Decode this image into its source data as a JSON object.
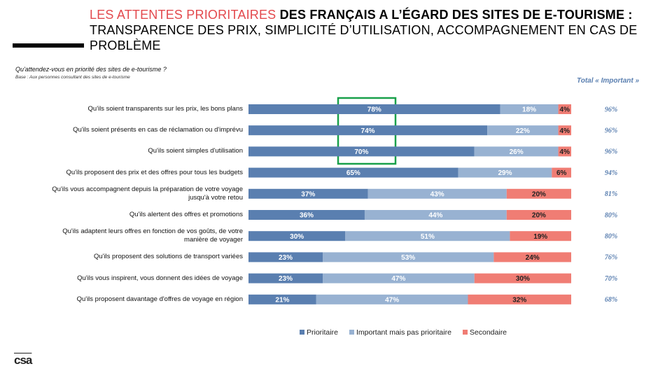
{
  "chart_data": {
    "type": "stacked-bar",
    "title": {
      "highlight": "LES ATTENTES PRIORITAIRES",
      "bold": "DES FRANÇAIS A L’ÉGARD DES SITES DE E-TOURISME :",
      "rest": "TRANSPARENCE DES PRIX, SIMPLICITÉ D’UTILISATION, ACCOMPAGNEMENT EN CAS DE PROBLÈME"
    },
    "question": "Qu'attendez-vous en priorité des sites de e-tourisme ?",
    "base": "Base : Aux personnes consultant des sites de e-tourisme",
    "categories": [
      "Qu'ils soient transparents sur les prix, les bons plans",
      "Qu'ils soient présents en cas de réclamation ou d'imprévu",
      "Qu'ils soient simples d'utilisation",
      "Qu'ils proposent des prix et des offres pour tous les budgets",
      "Qu'ils vous accompagnent depuis la préparation de votre voyage jusqu'à votre retou",
      "Qu'ils alertent des offres et promotions",
      "Qu'ils adaptent leurs offres en fonction de vos goûts, de votre manière de voyager",
      "Qu'ils proposent des solutions de transport variées",
      "Qu'ils vous inspirent, vous donnent des idées de voyage",
      "Qu'ils proposent davantage d'offres de voyage en région"
    ],
    "series": [
      {
        "name": "Prioritaire",
        "color": "#5a7fb0",
        "label_color": "#ffffff",
        "values": [
          78,
          74,
          70,
          65,
          37,
          36,
          30,
          23,
          23,
          21
        ],
        "value_labels": [
          "78%",
          "74%",
          "70%",
          "65%",
          "37%",
          "36%",
          "30%",
          "23%",
          "23%",
          "21%"
        ]
      },
      {
        "name": "Important mais pas prioritaire",
        "color": "#98b2d2",
        "label_color": "#ffffff",
        "values": [
          18,
          22,
          26,
          29,
          43,
          44,
          51,
          53,
          47,
          47
        ],
        "value_labels": [
          "18%",
          "22%",
          "26%",
          "29%",
          "43%",
          "44%",
          "51%",
          "53%",
          "47%",
          "47%"
        ]
      },
      {
        "name": "Secondaire",
        "color": "#f07d74",
        "label_color": "#222222",
        "values": [
          4,
          4,
          4,
          6,
          20,
          20,
          19,
          24,
          30,
          32
        ],
        "value_labels": [
          "4%",
          "4%",
          "4%",
          "6%",
          "20%",
          "20%",
          "19%",
          "24%",
          "30%",
          "32%"
        ]
      }
    ],
    "totals": {
      "header": "Total « Important »",
      "color": "#5a7fb0",
      "values": [
        96,
        96,
        96,
        94,
        81,
        80,
        80,
        76,
        70,
        68
      ],
      "value_labels": [
        "96%",
        "96%",
        "96%",
        "94%",
        "81%",
        "80%",
        "80%",
        "76%",
        "70%",
        "68%"
      ]
    },
    "logo": "csa"
  }
}
